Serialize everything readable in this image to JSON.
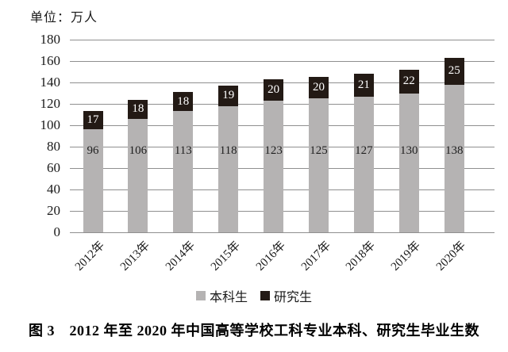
{
  "chart": {
    "unit_label": "单位：万人"
  },
  "chart_data": {
    "type": "bar",
    "stacked": true,
    "title": "",
    "xlabel": "",
    "ylabel": "单位：万人",
    "categories": [
      "2012年",
      "2013年",
      "2014年",
      "2015年",
      "2016年",
      "2017年",
      "2018年",
      "2019年",
      "2020年"
    ],
    "series": [
      {
        "name": "本科生",
        "color": "#b5b3b3",
        "label_color": "#1f1f1f",
        "values": [
          96,
          106,
          113,
          118,
          123,
          125,
          127,
          130,
          138
        ]
      },
      {
        "name": "研究生",
        "color": "#231a15",
        "label_color": "#ffffff",
        "values": [
          17,
          18,
          18,
          19,
          20,
          20,
          21,
          22,
          25
        ]
      }
    ],
    "ylim": [
      0,
      180
    ],
    "yticks": [
      0,
      20,
      40,
      60,
      80,
      100,
      120,
      140,
      160,
      180
    ],
    "grid": "horizontal",
    "legend_position": "bottom"
  },
  "caption": "图 3　2012 年至 2020 年中国高等学校工科专业本科、研究生毕业生数",
  "colors": {
    "gridline": "#8f8f8f",
    "text": "#1a1a1a",
    "background": "#ffffff"
  }
}
